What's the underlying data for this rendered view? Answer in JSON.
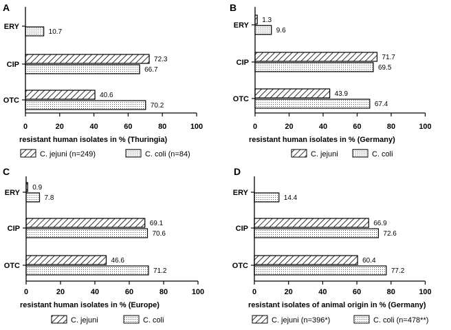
{
  "chart_data": [
    {
      "type": "bar",
      "orientation": "horizontal",
      "panel": "A",
      "categories": [
        "ERY",
        "CIP",
        "OTC"
      ],
      "series": [
        {
          "name": "C. jejuni (n=249)",
          "pattern": "hatched",
          "values": [
            null,
            72.3,
            40.6
          ],
          "labels": [
            "",
            "72.3",
            "40.6"
          ]
        },
        {
          "name": "C. coli (n=84)",
          "pattern": "dotted",
          "values": [
            10.7,
            66.7,
            70.2
          ],
          "labels": [
            "10.7",
            "66.7",
            "70.2"
          ]
        }
      ],
      "xlabel": "resistant human isolates in % (Thuringia)",
      "xlim": [
        0,
        100
      ],
      "xticks": [
        "0",
        "20",
        "40",
        "60",
        "80",
        "100"
      ],
      "legend": "bottom"
    },
    {
      "type": "bar",
      "orientation": "horizontal",
      "panel": "B",
      "categories": [
        "ERY",
        "CIP",
        "OTC"
      ],
      "series": [
        {
          "name": "C. jejuni",
          "pattern": "hatched",
          "values": [
            1.3,
            71.7,
            43.9
          ],
          "labels": [
            "1.3",
            "71.7",
            "43.9"
          ]
        },
        {
          "name": "C. coli",
          "pattern": "dotted",
          "values": [
            9.6,
            69.5,
            67.4
          ],
          "labels": [
            "9.6",
            "69.5",
            "67.4"
          ]
        }
      ],
      "xlabel": "resistant human isolates in % (Germany)",
      "xlim": [
        0,
        100
      ],
      "xticks": [
        "0",
        "20",
        "40",
        "60",
        "80",
        "100"
      ],
      "legend": "bottom"
    },
    {
      "type": "bar",
      "orientation": "horizontal",
      "panel": "C",
      "categories": [
        "ERY",
        "CIP",
        "OTC"
      ],
      "series": [
        {
          "name": "C. jejuni",
          "pattern": "hatched",
          "values": [
            0.9,
            69.1,
            46.6
          ],
          "labels": [
            "0.9",
            "69.1",
            "46.6"
          ]
        },
        {
          "name": "C. coli",
          "pattern": "dotted",
          "values": [
            7.8,
            70.6,
            71.2
          ],
          "labels": [
            "7.8",
            "70.6",
            "71.2"
          ]
        }
      ],
      "xlabel": "resistant human isolates in % (Europe)",
      "xlim": [
        0,
        100
      ],
      "xticks": [
        "0",
        "20",
        "40",
        "60",
        "80",
        "100"
      ],
      "legend": "bottom"
    },
    {
      "type": "bar",
      "orientation": "horizontal",
      "panel": "D",
      "categories": [
        "ERY",
        "CIP",
        "OTC"
      ],
      "series": [
        {
          "name": "C. jejuni (n=396*)",
          "pattern": "hatched",
          "values": [
            null,
            66.9,
            60.4
          ],
          "labels": [
            "",
            "66.9",
            "60.4"
          ]
        },
        {
          "name": "C. coli (n=478**)",
          "pattern": "dotted",
          "values": [
            14.4,
            72.6,
            77.2
          ],
          "labels": [
            "14.4",
            "72.6",
            "77.2"
          ]
        }
      ],
      "xlabel": "resistant isolates of animal origin in % (Germany)",
      "xlim": [
        0,
        100
      ],
      "xticks": [
        "0",
        "20",
        "40",
        "60",
        "80",
        "100"
      ],
      "legend": "bottom"
    }
  ]
}
